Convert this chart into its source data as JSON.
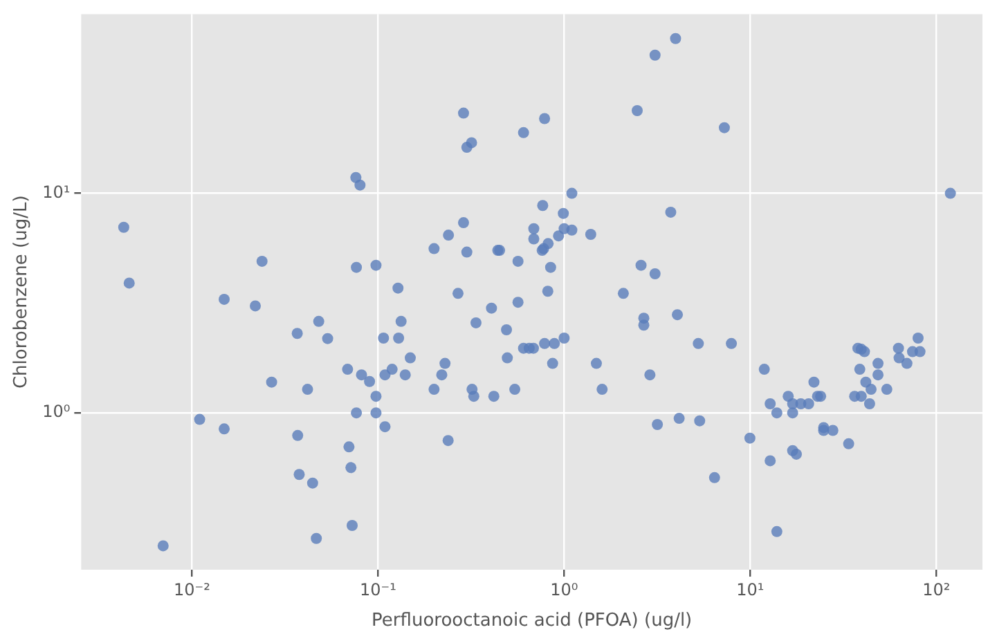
{
  "chart_data": {
    "type": "scatter",
    "xlabel": "Perfluorooctanoic acid (PFOA) (ug/l)",
    "ylabel": "Chlorobenzene (ug/L)",
    "log": "xy",
    "grid": true,
    "marker": "circle",
    "xlim": [
      0.00254,
      177
    ],
    "ylim": [
      0.193,
      65.5
    ],
    "xticks": [
      {
        "value": 0.01,
        "label": "10⁻²"
      },
      {
        "value": 0.1,
        "label": "10⁻¹"
      },
      {
        "value": 1,
        "label": "10⁰"
      },
      {
        "value": 10,
        "label": "10¹"
      },
      {
        "value": 100,
        "label": "10²"
      }
    ],
    "yticks": [
      {
        "value": 1,
        "label": "10⁰"
      },
      {
        "value": 10,
        "label": "10¹"
      }
    ],
    "series": [
      {
        "color": "#5a7dba",
        "x": [
          0.076,
          0.08,
          0.0043,
          0.0238,
          0.0765,
          0.0975,
          0.0046,
          3.08,
          3.97,
          0.288,
          0.785,
          0.605,
          0.3,
          0.318,
          2.47,
          1.1,
          0.767,
          0.99,
          3.74,
          0.288,
          0.239,
          0.687,
          0.687,
          1.0,
          1.1,
          0.933,
          1.39,
          0.82,
          0.776,
          0.762,
          0.2,
          0.3,
          0.44,
          0.45,
          0.565,
          0.846,
          2.59,
          3.08,
          0.128,
          7.26,
          119,
          0.0149,
          0.0219,
          0.048,
          0.0368,
          0.0536,
          0.0686,
          0.0815,
          0.09,
          0.0975,
          0.0268,
          0.0418,
          0.0765,
          0.0975,
          0.011,
          0.0149,
          0.037,
          0.0698,
          0.0715,
          0.0377,
          0.0445,
          0.0726,
          0.0466,
          0.007,
          0.269,
          0.817,
          2.08,
          0.407,
          0.565,
          0.133,
          0.336,
          2.68,
          2.68,
          0.107,
          0.129,
          0.49,
          0.149,
          0.495,
          0.605,
          0.649,
          0.684,
          0.785,
          0.886,
          1.0,
          0.867,
          1.49,
          1.6,
          2.89,
          3.17,
          0.109,
          0.109,
          0.119,
          0.14,
          0.229,
          0.22,
          0.2,
          0.32,
          0.327,
          0.419,
          0.543,
          0.238,
          4.06,
          5.26,
          7.92,
          11.9,
          4.15,
          5.35,
          9.96,
          12.8,
          6.43,
          13.9,
          12.8,
          13.9,
          16.0,
          16.9,
          18.7,
          20.6,
          16.9,
          22.0,
          23.0,
          23.9,
          24.8,
          24.8,
          27.8,
          16.9,
          17.7,
          33.8,
          36.4,
          39.5,
          43.8,
          44.6,
          41.8,
          38.8,
          48.6,
          48.6,
          54.2,
          37.9,
          39.5,
          41.1,
          62.6,
          63.1,
          69.5,
          74.5,
          81.7,
          79.8
        ],
        "values": [
          11.8,
          10.9,
          7.0,
          4.9,
          4.6,
          4.7,
          3.9,
          42.6,
          50.7,
          23.2,
          21.9,
          18.9,
          16.2,
          17.0,
          23.8,
          10.0,
          8.8,
          8.1,
          8.2,
          7.35,
          6.45,
          6.9,
          6.2,
          6.9,
          6.8,
          6.4,
          6.5,
          5.9,
          5.6,
          5.5,
          5.6,
          5.4,
          5.5,
          5.5,
          4.9,
          4.6,
          4.7,
          4.3,
          3.7,
          19.9,
          10.0,
          3.29,
          3.07,
          2.61,
          2.3,
          2.18,
          1.58,
          1.49,
          1.39,
          1.19,
          1.38,
          1.28,
          1.0,
          1.0,
          0.934,
          0.845,
          0.789,
          0.7,
          0.563,
          0.524,
          0.479,
          0.307,
          0.268,
          0.248,
          3.5,
          3.58,
          3.5,
          3.0,
          3.19,
          2.61,
          2.57,
          2.7,
          2.51,
          2.19,
          2.19,
          2.39,
          1.78,
          1.78,
          1.97,
          1.97,
          1.97,
          2.07,
          2.07,
          2.19,
          1.68,
          1.68,
          1.28,
          1.49,
          0.885,
          0.865,
          1.49,
          1.58,
          1.49,
          1.68,
          1.49,
          1.28,
          1.28,
          1.19,
          1.19,
          1.28,
          0.748,
          2.8,
          2.07,
          2.07,
          1.58,
          0.944,
          0.92,
          0.767,
          0.605,
          0.507,
          0.288,
          1.1,
          1.0,
          1.19,
          1.1,
          1.1,
          1.1,
          1.0,
          1.38,
          1.19,
          1.19,
          0.857,
          0.832,
          0.832,
          0.673,
          0.648,
          0.723,
          1.19,
          1.19,
          1.1,
          1.28,
          1.38,
          1.58,
          1.49,
          1.68,
          1.28,
          1.97,
          1.95,
          1.9,
          1.97,
          1.78,
          1.68,
          1.9,
          1.9,
          2.19
        ]
      }
    ]
  }
}
